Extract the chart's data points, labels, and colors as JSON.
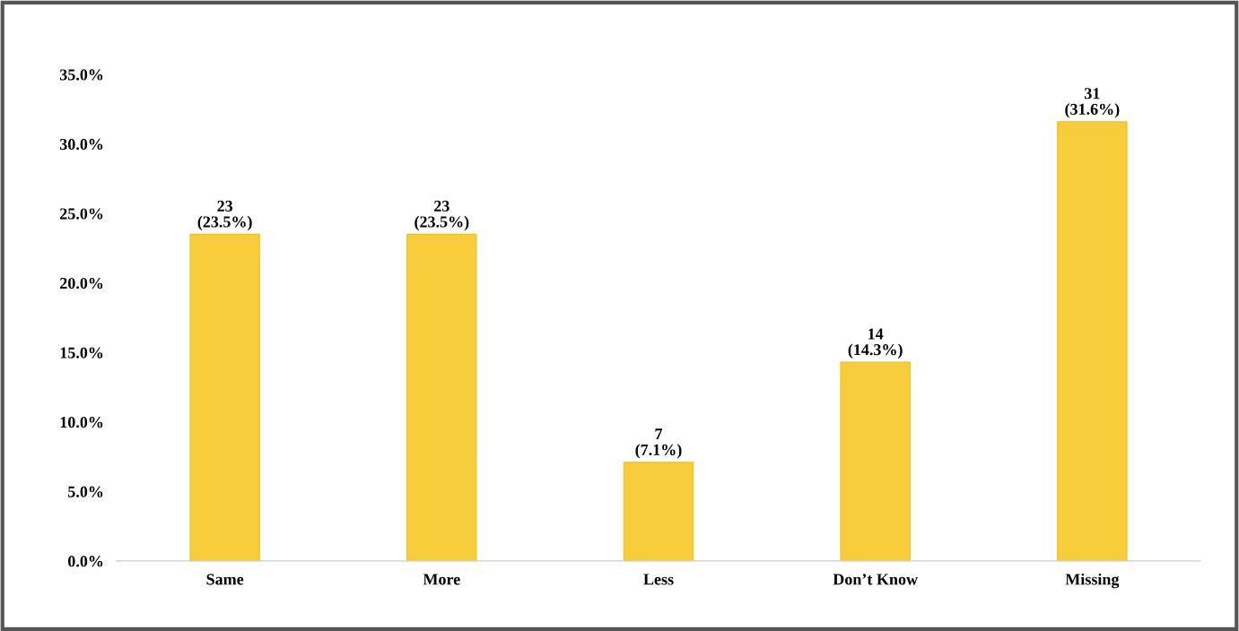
{
  "chart_data": {
    "type": "bar",
    "categories": [
      "Same",
      "More",
      "Less",
      "Don’t Know",
      "Missing"
    ],
    "values": [
      23.5,
      23.5,
      7.1,
      14.3,
      31.6
    ],
    "value_labels": [
      "23\n(23.5%)",
      "23\n(23.5%)",
      "7\n(7.1%)",
      "14\n(14.3%)",
      "31\n(31.6%)"
    ],
    "color": "#f7cd3c",
    "ylim": [
      0,
      35
    ],
    "yticks": [
      {
        "value": 0,
        "label": "0.0%"
      },
      {
        "value": 5,
        "label": "5.0%"
      },
      {
        "value": 10,
        "label": "10.0%"
      },
      {
        "value": 15,
        "label": "15.0%"
      },
      {
        "value": 20,
        "label": "20.0%"
      },
      {
        "value": 25,
        "label": "25.0%"
      },
      {
        "value": 30,
        "label": "30.0%"
      },
      {
        "value": 35,
        "label": "35.0%"
      }
    ],
    "grid": false,
    "legend": false
  }
}
